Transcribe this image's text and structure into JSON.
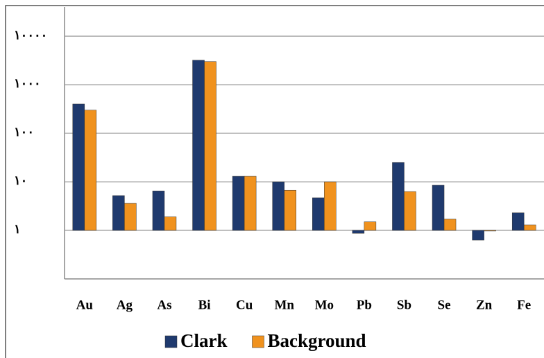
{
  "chart_data": {
    "type": "bar",
    "categories": [
      "Au",
      "Ag",
      "As",
      "Bi",
      "Cu",
      "Mn",
      "Mo",
      "Pb",
      "Sb",
      "Se",
      "Zn",
      "Fe"
    ],
    "series": [
      {
        "name": "Clark",
        "color": "#1f3a6e",
        "values": [
          400,
          5.2,
          6.5,
          3200,
          13,
          10,
          4.7,
          0.87,
          25,
          8.5,
          0.63,
          2.3
        ]
      },
      {
        "name": "Background",
        "color": "#f0921e",
        "values": [
          300,
          3.6,
          1.9,
          3000,
          13,
          6.7,
          10,
          1.5,
          6.3,
          1.7,
          0.97,
          1.3
        ]
      }
    ],
    "log_scale": true,
    "ylim": [
      0.1,
      40000
    ],
    "yticks": [
      {
        "value": 1,
        "label": "١"
      },
      {
        "value": 10,
        "label": "١٠"
      },
      {
        "value": 100,
        "label": "١٠٠"
      },
      {
        "value": 1000,
        "label": "١٠٠٠"
      },
      {
        "value": 10000,
        "label": "١٠٠٠٠"
      }
    ],
    "grid": true,
    "legend": "bottom"
  }
}
